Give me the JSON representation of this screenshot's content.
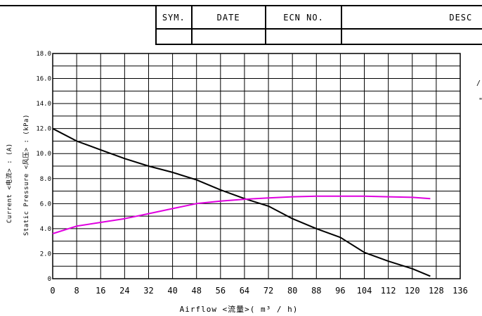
{
  "revision_table": {
    "headers": [
      "SYM.",
      "DATE",
      "ECN NO.",
      "DESC"
    ],
    "rows": [
      [
        "",
        "",
        "",
        ""
      ]
    ]
  },
  "margin_marks": [
    "/",
    "\""
  ],
  "chart_data": {
    "type": "line",
    "title": "",
    "xlabel": "Airflow  <流量>( m³ / h)",
    "ylabel_lines": [
      "Static  Pressure  <风压> : (kPa)",
      "Current  <电流> : (A)"
    ],
    "xticks": [
      "0",
      "8",
      "16",
      "24",
      "32",
      "40",
      "48",
      "56",
      "64",
      "72",
      "80",
      "88",
      "96",
      "104",
      "112",
      "120",
      "128",
      "136"
    ],
    "yticks": [
      "0",
      "2.0",
      "4.0",
      "6.0",
      "8.0",
      "10.0",
      "12.0",
      "14.0",
      "16.0",
      "18.0"
    ],
    "xlim": [
      0,
      136
    ],
    "ylim": [
      0,
      18
    ],
    "grid": true,
    "legend": "none",
    "series": [
      {
        "color": "#000000",
        "x": [
          0,
          8,
          16,
          24,
          32,
          40,
          48,
          56,
          64,
          72,
          80,
          88,
          96,
          104,
          112,
          120,
          126
        ],
        "y": [
          12.0,
          11.0,
          10.3,
          9.6,
          9.0,
          8.5,
          7.9,
          7.1,
          6.4,
          5.8,
          4.8,
          4.0,
          3.3,
          2.1,
          1.4,
          0.8,
          0.2
        ]
      },
      {
        "color": "#e000e0",
        "x": [
          0,
          8,
          16,
          24,
          32,
          40,
          48,
          56,
          64,
          72,
          80,
          88,
          96,
          104,
          112,
          120,
          126
        ],
        "y": [
          3.6,
          4.2,
          4.5,
          4.8,
          5.2,
          5.6,
          6.0,
          6.2,
          6.35,
          6.45,
          6.55,
          6.6,
          6.6,
          6.6,
          6.55,
          6.5,
          6.4
        ]
      }
    ]
  }
}
